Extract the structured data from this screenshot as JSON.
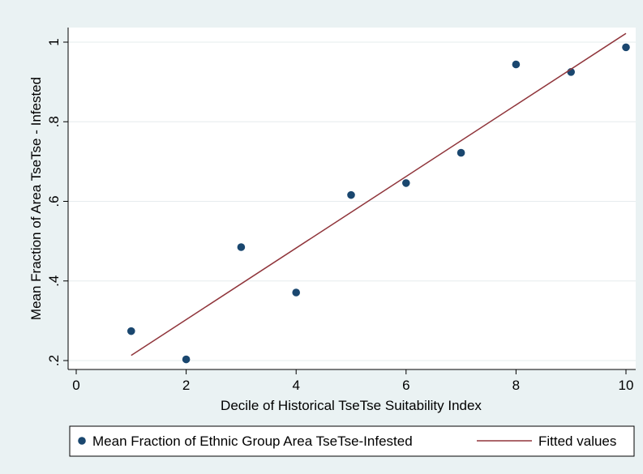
{
  "chart_data": {
    "type": "scatter",
    "xlabel": "Decile of Historical TseTse Suitability Index",
    "ylabel": "Mean Fraction of Area TseTse - Infested",
    "xlim": [
      0,
      10
    ],
    "ylim": [
      0.2,
      1.0
    ],
    "xticks": [
      0,
      2,
      4,
      6,
      8,
      10
    ],
    "yticks": [
      0.2,
      0.4,
      0.6,
      0.8,
      1.0
    ],
    "xtick_labels": [
      "0",
      "2",
      "4",
      "6",
      "8",
      "10"
    ],
    "ytick_labels": [
      ".2",
      ".4",
      ".6",
      ".8",
      "1"
    ],
    "grid": true,
    "legend_position": "bottom",
    "series": [
      {
        "name": "Mean Fraction of Ethnic Group Area TseTse-Infested",
        "type": "scatter",
        "color": "#1a476f",
        "x": [
          1,
          2,
          3,
          4,
          5,
          6,
          7,
          8,
          9,
          10
        ],
        "y": [
          0.274,
          0.203,
          0.485,
          0.371,
          0.616,
          0.646,
          0.722,
          0.944,
          0.925,
          0.987
        ]
      },
      {
        "name": "Fitted values",
        "type": "line",
        "color": "#90353b",
        "x": [
          1,
          10
        ],
        "y": [
          0.213,
          1.022
        ]
      }
    ]
  }
}
